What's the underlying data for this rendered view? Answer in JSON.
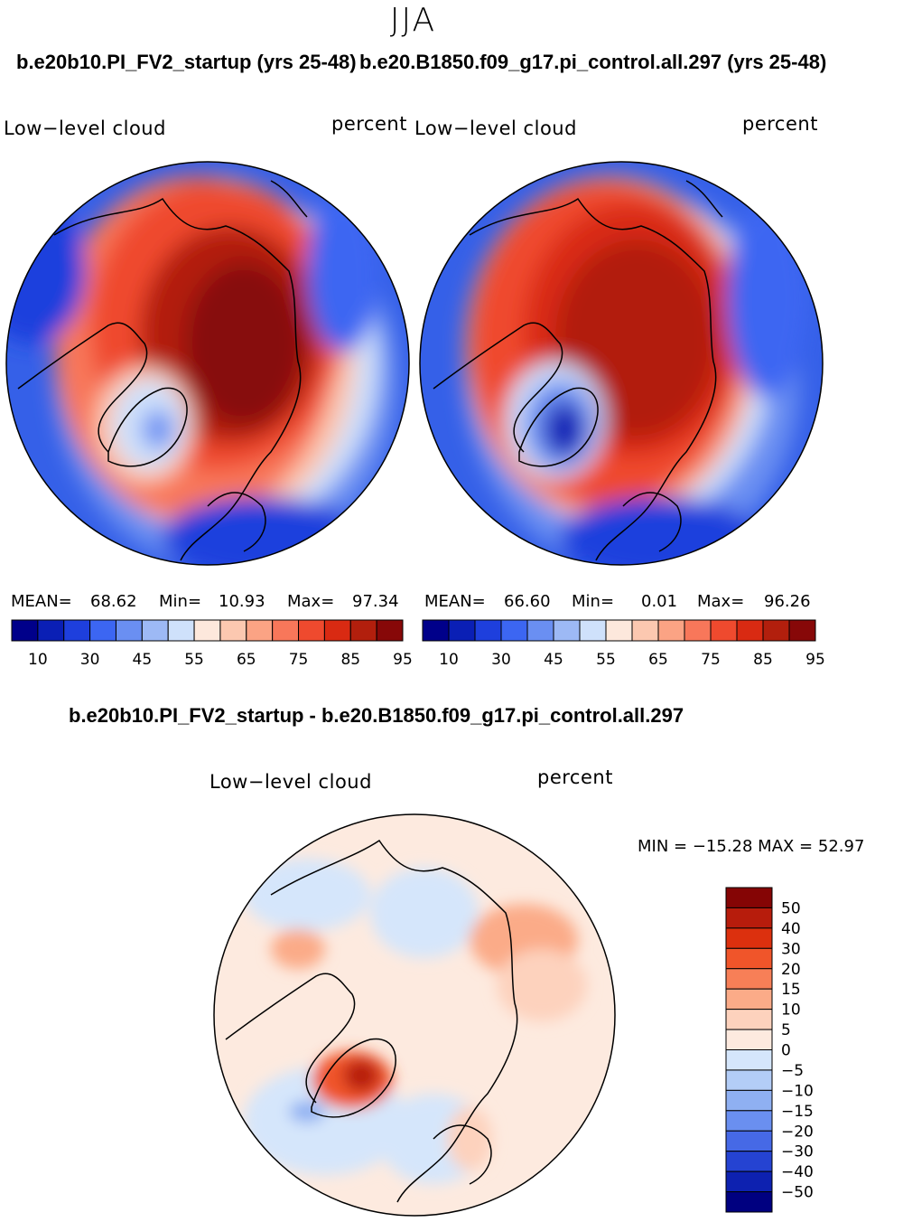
{
  "season": "JJA",
  "panels": {
    "left": {
      "title": "b.e20b10.PI_FV2_startup (yrs 25-48)",
      "variable": "Low−level cloud",
      "units": "percent",
      "mean_label": "MEAN=",
      "mean": "68.62",
      "min_label": "Min=",
      "min": "10.93",
      "max_label": "Max=",
      "max": "97.34"
    },
    "right": {
      "title": "b.e20.B1850.f09_g17.pi_control.all.297 (yrs 25-48)",
      "variable": "Low−level cloud",
      "units": "percent",
      "mean_label": "MEAN=",
      "mean": "66.60",
      "min_label": "Min=",
      "min": "0.01",
      "max_label": "Max=",
      "max": "96.26"
    },
    "diff": {
      "title": "b.e20b10.PI_FV2_startup - b.e20.B1850.f09_g17.pi_control.all.297",
      "variable": "Low−level cloud",
      "units": "percent",
      "minmax_text": "MIN = −15.28 MAX =   52.97"
    }
  },
  "chart_data": [
    {
      "type": "heatmap",
      "projection": "north polar stereographic",
      "title": "b.e20b10.PI_FV2_startup (yrs 25-48)",
      "variable": "Low-level cloud",
      "units": "percent",
      "stats": {
        "mean": 68.62,
        "min": 10.93,
        "max": 97.34
      },
      "colorbar": {
        "colors": [
          "#00008a",
          "#0a1fb5",
          "#1e3fdd",
          "#3c66f2",
          "#6a8ff2",
          "#9db9f5",
          "#cfe1fb",
          "#fde8dc",
          "#fcc8b0",
          "#fba384",
          "#f8775a",
          "#ef4a2e",
          "#d92a12",
          "#b21f0d",
          "#870808"
        ],
        "tick_labels": [
          "10",
          "30",
          "45",
          "55",
          "65",
          "75",
          "85",
          "95"
        ]
      }
    },
    {
      "type": "heatmap",
      "projection": "north polar stereographic",
      "title": "b.e20.B1850.f09_g17.pi_control.all.297 (yrs 25-48)",
      "variable": "Low-level cloud",
      "units": "percent",
      "stats": {
        "mean": 66.6,
        "min": 0.01,
        "max": 96.26
      },
      "colorbar": {
        "colors": [
          "#00008a",
          "#0a1fb5",
          "#1e3fdd",
          "#3c66f2",
          "#6a8ff2",
          "#9db9f5",
          "#cfe1fb",
          "#fde8dc",
          "#fcc8b0",
          "#fba384",
          "#f8775a",
          "#ef4a2e",
          "#d92a12",
          "#b21f0d",
          "#870808"
        ],
        "tick_labels": [
          "10",
          "30",
          "45",
          "55",
          "65",
          "75",
          "85",
          "95"
        ]
      }
    },
    {
      "type": "heatmap",
      "projection": "north polar stereographic",
      "title": "b.e20b10.PI_FV2_startup - b.e20.B1850.f09_g17.pi_control.all.297",
      "variable": "Low-level cloud",
      "units": "percent",
      "stats": {
        "min": -15.28,
        "max": 52.97
      },
      "colorbar": {
        "colors": [
          "#850505",
          "#b71c0c",
          "#dc300e",
          "#f0552a",
          "#f77f57",
          "#fbab88",
          "#fdd2bd",
          "#fdeadf",
          "#d5e6fb",
          "#b3cdf7",
          "#8fb0f2",
          "#6a8ff0",
          "#4669e6",
          "#2543d2",
          "#0d21b0",
          "#000080"
        ],
        "tick_labels": [
          "50",
          "40",
          "30",
          "20",
          "15",
          "10",
          "5",
          "0",
          "−5",
          "−10",
          "−15",
          "−20",
          "−30",
          "−40",
          "−50"
        ]
      }
    }
  ]
}
